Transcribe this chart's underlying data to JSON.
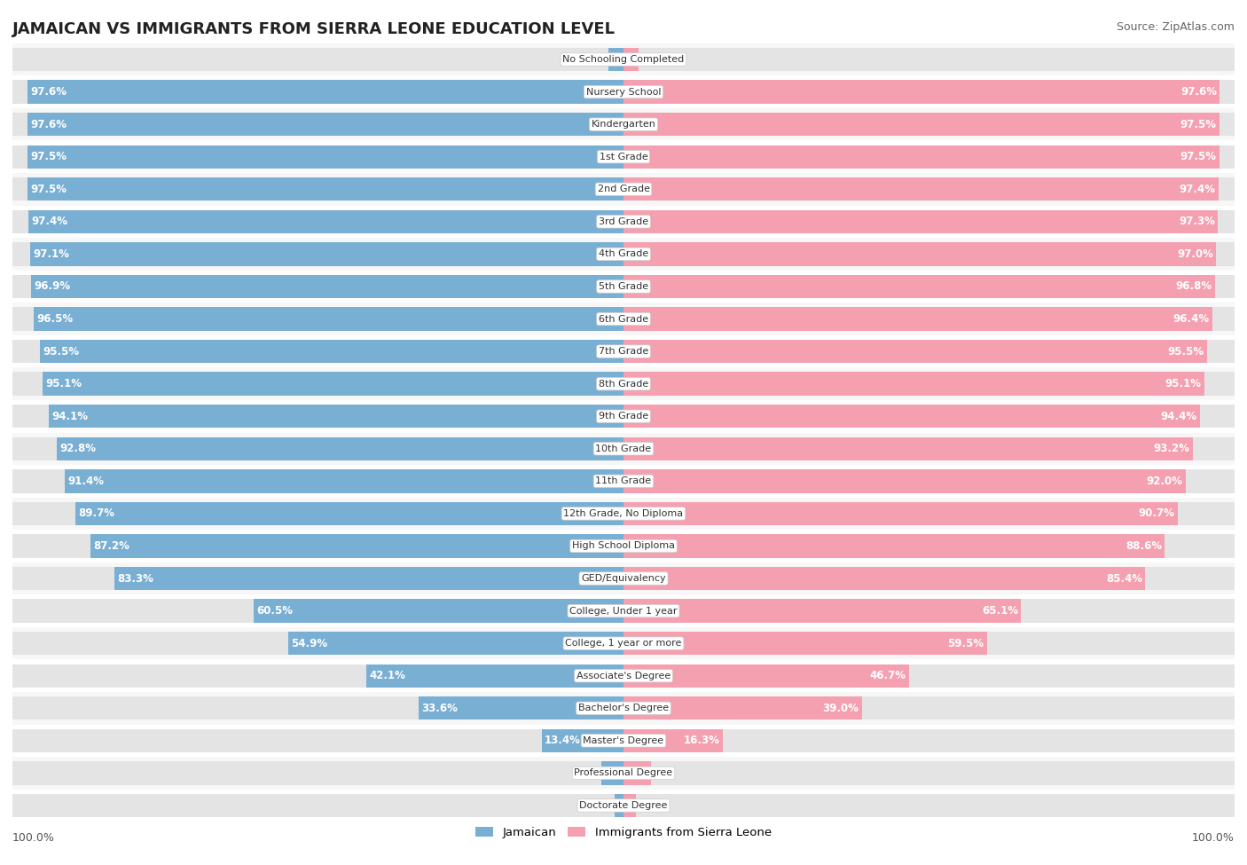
{
  "title": "JAMAICAN VS IMMIGRANTS FROM SIERRA LEONE EDUCATION LEVEL",
  "source": "Source: ZipAtlas.com",
  "categories": [
    "No Schooling Completed",
    "Nursery School",
    "Kindergarten",
    "1st Grade",
    "2nd Grade",
    "3rd Grade",
    "4th Grade",
    "5th Grade",
    "6th Grade",
    "7th Grade",
    "8th Grade",
    "9th Grade",
    "10th Grade",
    "11th Grade",
    "12th Grade, No Diploma",
    "High School Diploma",
    "GED/Equivalency",
    "College, Under 1 year",
    "College, 1 year or more",
    "Associate's Degree",
    "Bachelor's Degree",
    "Master's Degree",
    "Professional Degree",
    "Doctorate Degree"
  ],
  "jamaican": [
    2.4,
    97.6,
    97.6,
    97.5,
    97.5,
    97.4,
    97.1,
    96.9,
    96.5,
    95.5,
    95.1,
    94.1,
    92.8,
    91.4,
    89.7,
    87.2,
    83.3,
    60.5,
    54.9,
    42.1,
    33.6,
    13.4,
    3.7,
    1.5
  ],
  "sierra_leone": [
    2.5,
    97.6,
    97.5,
    97.5,
    97.4,
    97.3,
    97.0,
    96.8,
    96.4,
    95.5,
    95.1,
    94.4,
    93.2,
    92.0,
    90.7,
    88.6,
    85.4,
    65.1,
    59.5,
    46.7,
    39.0,
    16.3,
    4.5,
    2.0
  ],
  "bar_color_jamaican": "#7aafd4",
  "bar_color_sierra": "#f4a0b0",
  "bar_bg_color": "#e4e4e4",
  "row_bg_even": "#f7f7f7",
  "row_bg_odd": "#ffffff",
  "title_fontsize": 13,
  "source_fontsize": 9,
  "value_fontsize": 8.5,
  "cat_fontsize": 8,
  "legend_jamaican": "Jamaican",
  "legend_sierra": "Immigrants from Sierra Leone",
  "left_axis_label": "100.0%",
  "right_axis_label": "100.0%"
}
